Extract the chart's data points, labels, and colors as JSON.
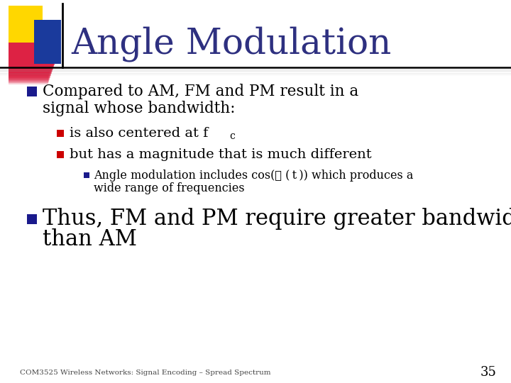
{
  "bg_color": "#ffffff",
  "title": "Angle Modulation",
  "title_color": "#2E3080",
  "title_fontsize": 36,
  "footer_text": "COM3525 Wireless Networks: Signal Encoding – Spread Spectrum",
  "footer_number": "35",
  "blue_dark": "#1a1a8c",
  "red_bullet": "#cc0000"
}
